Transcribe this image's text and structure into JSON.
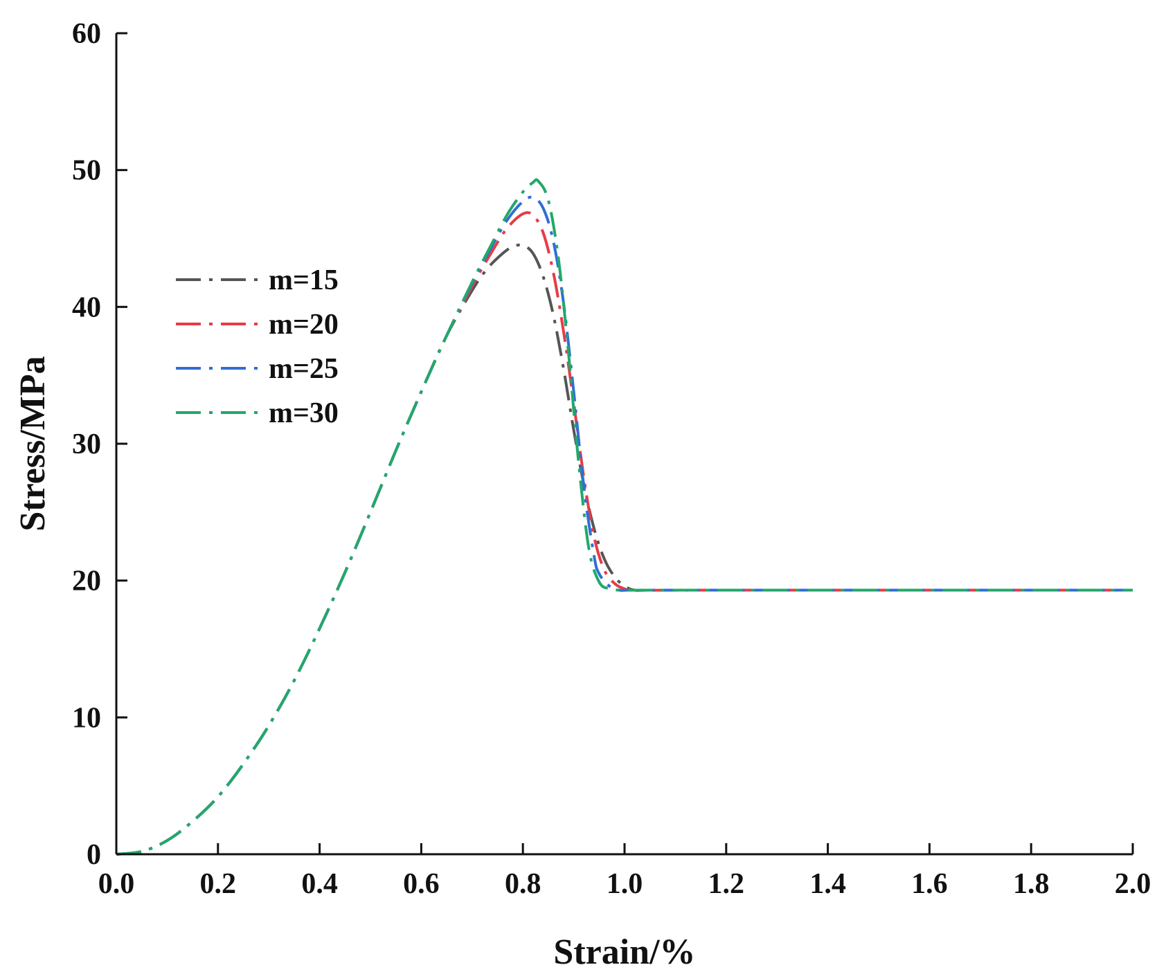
{
  "chart_data": {
    "type": "line",
    "title": "",
    "xlabel": "Strain/%",
    "ylabel": "Stress/MPa",
    "xlim": [
      0.0,
      2.0
    ],
    "ylim": [
      0,
      60
    ],
    "xticks": [
      "0.0",
      "0.2",
      "0.4",
      "0.6",
      "0.8",
      "1.0",
      "1.2",
      "1.4",
      "1.6",
      "1.8",
      "2.0"
    ],
    "yticks": [
      "0",
      "10",
      "20",
      "30",
      "40",
      "50",
      "60"
    ],
    "grid": false,
    "legend_position": "upper-left",
    "line_style": "dash-dot",
    "series": [
      {
        "name": "m=15",
        "color": "#555555",
        "x": [
          0.0,
          0.05,
          0.1,
          0.15,
          0.2,
          0.25,
          0.3,
          0.35,
          0.4,
          0.45,
          0.5,
          0.55,
          0.6,
          0.65,
          0.7,
          0.73,
          0.76,
          0.78,
          0.8,
          0.82,
          0.84,
          0.86,
          0.88,
          0.9,
          0.92,
          0.94,
          0.96,
          0.98,
          1.0,
          1.02,
          1.05,
          1.2,
          1.5,
          2.0
        ],
        "y": [
          0,
          0.2,
          1.0,
          2.4,
          4.2,
          6.6,
          9.4,
          12.7,
          16.5,
          20.6,
          25.0,
          29.5,
          33.8,
          37.9,
          41.2,
          42.8,
          43.9,
          44.4,
          44.5,
          43.9,
          42.2,
          39.4,
          35.5,
          31.0,
          27.0,
          23.8,
          21.6,
          20.3,
          19.6,
          19.3,
          19.3,
          19.3,
          19.3,
          19.3
        ]
      },
      {
        "name": "m=20",
        "color": "#e63c46",
        "x": [
          0.0,
          0.05,
          0.1,
          0.15,
          0.2,
          0.25,
          0.3,
          0.35,
          0.4,
          0.45,
          0.5,
          0.55,
          0.6,
          0.65,
          0.7,
          0.74,
          0.77,
          0.8,
          0.82,
          0.84,
          0.86,
          0.88,
          0.9,
          0.92,
          0.94,
          0.96,
          0.98,
          1.0,
          1.02,
          1.2,
          1.5,
          2.0
        ],
        "y": [
          0,
          0.2,
          1.0,
          2.4,
          4.2,
          6.6,
          9.4,
          12.7,
          16.5,
          20.6,
          25.0,
          29.5,
          33.8,
          37.9,
          41.5,
          44.1,
          45.8,
          46.8,
          46.7,
          45.4,
          42.5,
          38.2,
          33.0,
          27.5,
          23.2,
          20.8,
          19.8,
          19.4,
          19.3,
          19.3,
          19.3,
          19.3
        ]
      },
      {
        "name": "m=25",
        "color": "#2f6fd6",
        "x": [
          0.0,
          0.05,
          0.1,
          0.15,
          0.2,
          0.25,
          0.3,
          0.35,
          0.4,
          0.45,
          0.5,
          0.55,
          0.6,
          0.65,
          0.7,
          0.74,
          0.77,
          0.8,
          0.82,
          0.84,
          0.86,
          0.88,
          0.9,
          0.92,
          0.94,
          0.95,
          0.97,
          0.99,
          1.02,
          1.2,
          1.5,
          2.0
        ],
        "y": [
          0,
          0.2,
          1.0,
          2.4,
          4.2,
          6.6,
          9.4,
          12.7,
          16.5,
          20.6,
          25.0,
          29.5,
          33.8,
          37.9,
          41.7,
          44.5,
          46.4,
          47.7,
          48.0,
          47.2,
          44.8,
          40.3,
          33.8,
          26.8,
          21.8,
          20.5,
          19.6,
          19.3,
          19.3,
          19.3,
          19.3,
          19.3
        ]
      },
      {
        "name": "m=30",
        "color": "#22a86a",
        "x": [
          0.0,
          0.05,
          0.1,
          0.15,
          0.2,
          0.25,
          0.3,
          0.35,
          0.4,
          0.45,
          0.5,
          0.55,
          0.6,
          0.65,
          0.7,
          0.74,
          0.77,
          0.8,
          0.82,
          0.83,
          0.85,
          0.87,
          0.89,
          0.91,
          0.93,
          0.95,
          0.97,
          0.99,
          1.02,
          1.2,
          1.5,
          2.0
        ],
        "y": [
          0,
          0.2,
          1.0,
          2.4,
          4.2,
          6.6,
          9.4,
          12.7,
          16.5,
          20.6,
          25.0,
          29.5,
          33.8,
          37.9,
          41.8,
          44.7,
          46.8,
          48.4,
          49.1,
          49.2,
          47.8,
          43.5,
          36.5,
          28.5,
          22.3,
          19.9,
          19.4,
          19.3,
          19.3,
          19.3,
          19.3,
          19.3
        ]
      }
    ]
  }
}
